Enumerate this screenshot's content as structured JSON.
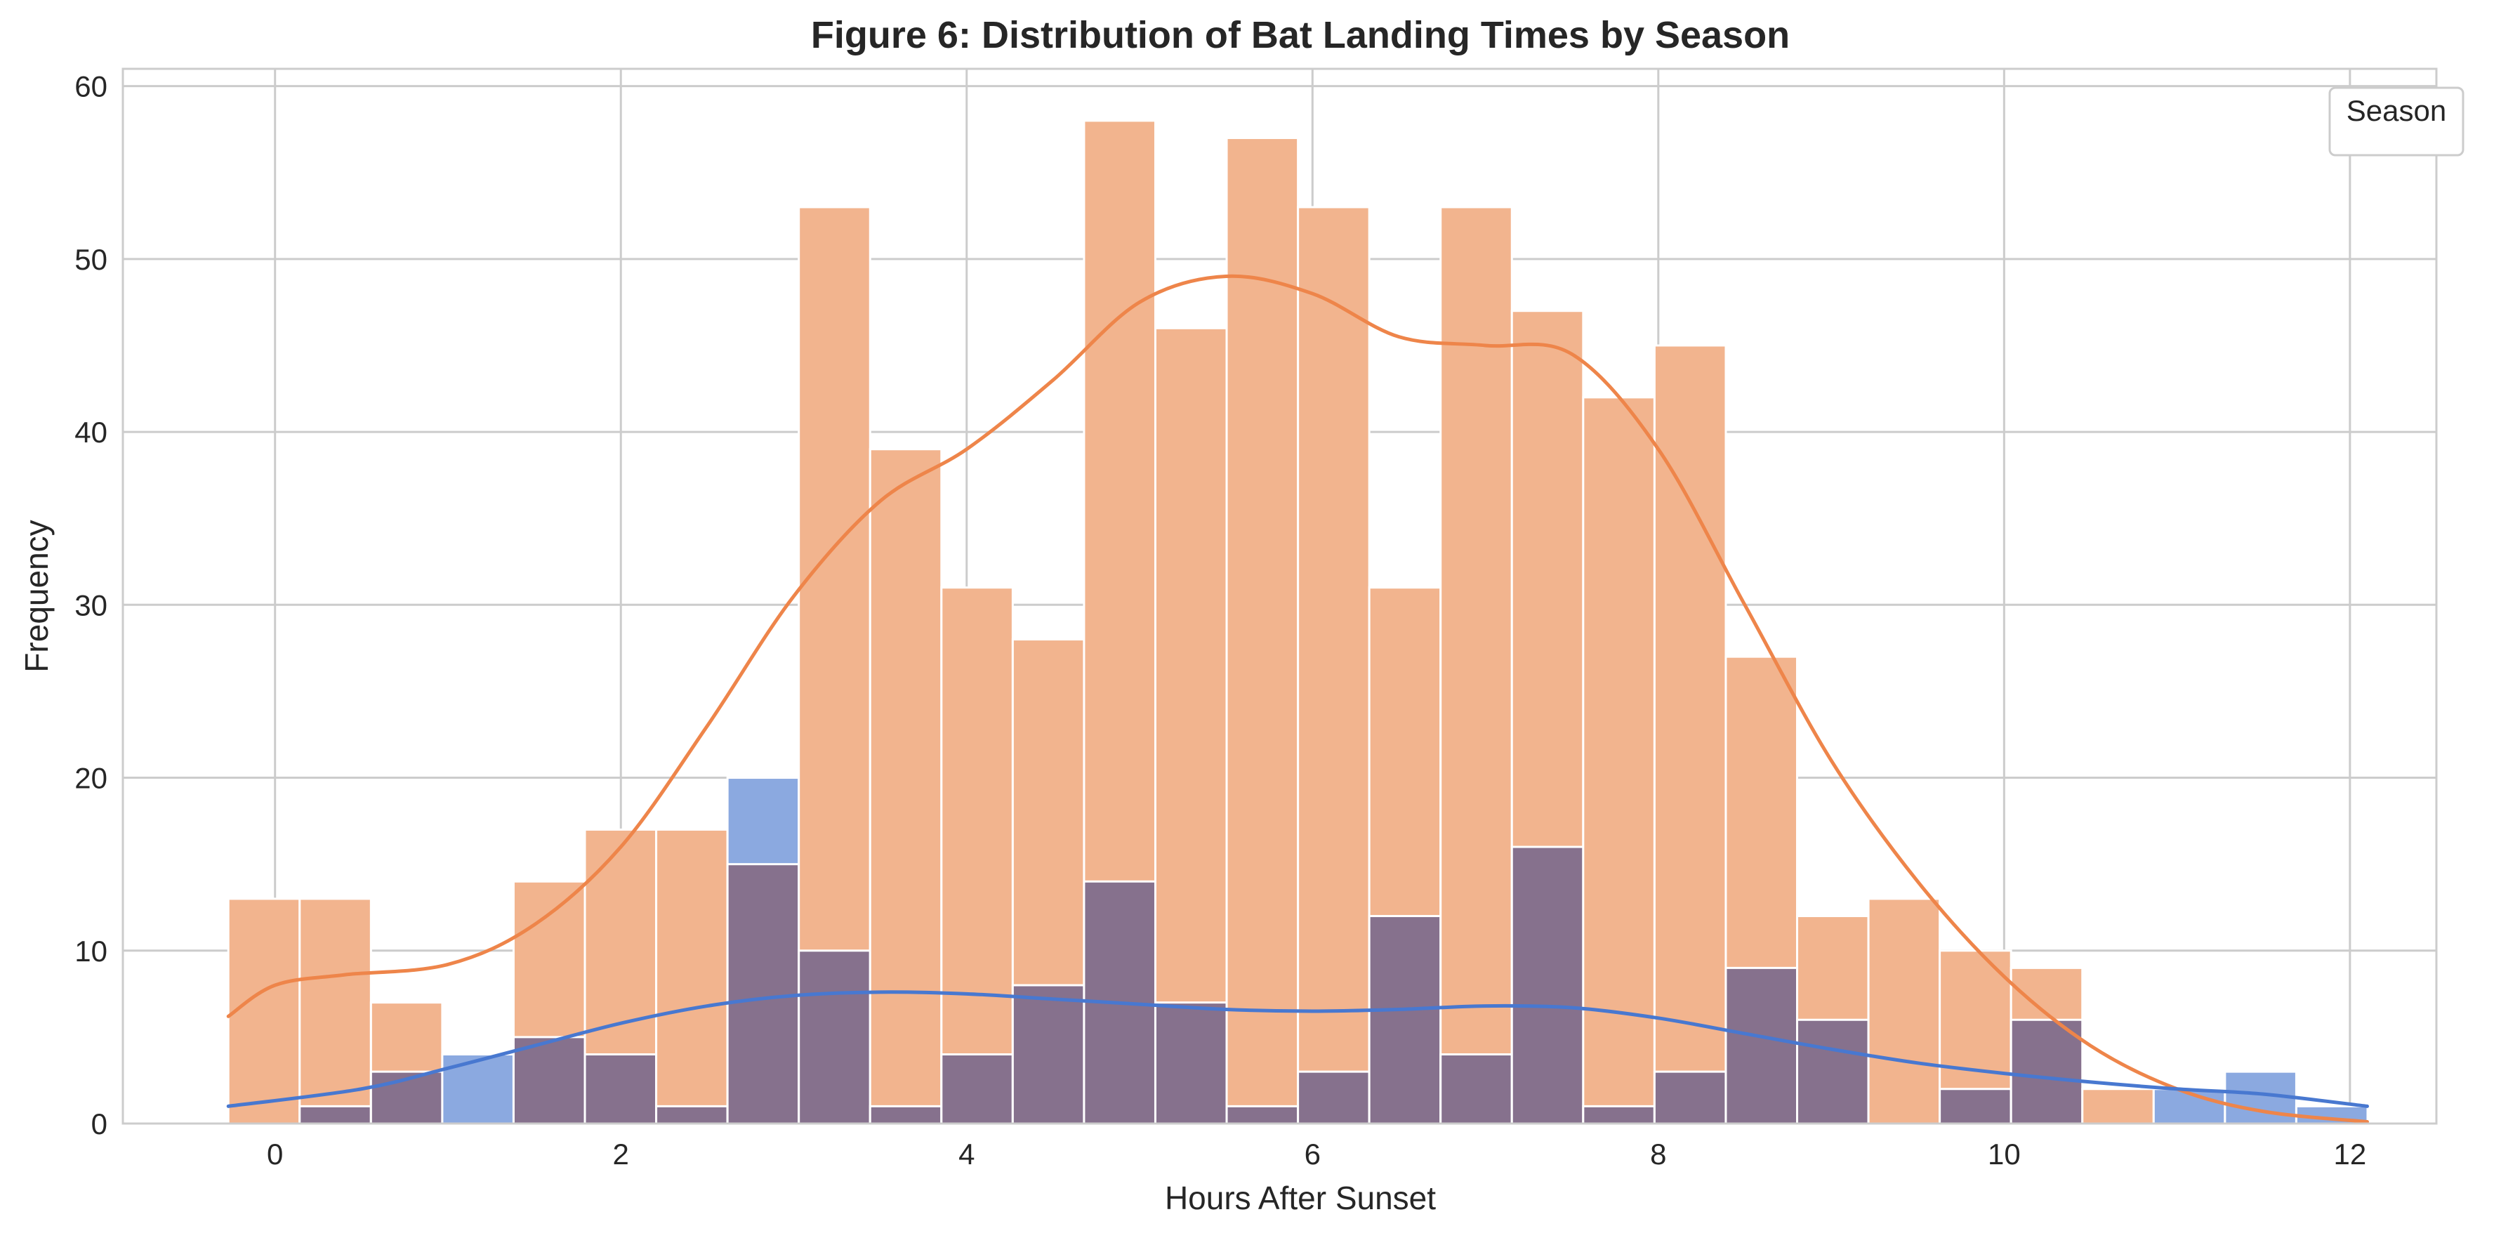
{
  "chart_data": {
    "type": "histogram",
    "title": "Figure 6: Distribution of Bat Landing Times by Season",
    "xlabel": "Hours After Sunset",
    "ylabel": "Frequency",
    "xlim": [
      -0.88,
      12.5
    ],
    "ylim": [
      0,
      61
    ],
    "xticks": [
      0,
      2,
      4,
      6,
      8,
      10,
      12
    ],
    "yticks": [
      0,
      10,
      20,
      30,
      40,
      50,
      60
    ],
    "grid": true,
    "legend": {
      "title": "Season",
      "location": "top-right",
      "entries": []
    },
    "bin_start": -0.27,
    "bin_width": 0.4124,
    "series": [
      {
        "color": "#ee854a",
        "fill": "#f2b48e",
        "values": [
          13,
          13,
          7,
          0,
          14,
          17,
          17,
          15,
          53,
          39,
          31,
          28,
          58,
          46,
          57,
          53,
          31,
          53,
          47,
          42,
          45,
          27,
          12,
          13,
          10,
          9,
          2,
          0,
          0,
          0
        ],
        "kde": [
          [
            -0.27,
            6.2
          ],
          [
            0.0,
            8.0
          ],
          [
            0.4,
            8.6
          ],
          [
            1.0,
            9.2
          ],
          [
            1.5,
            11.5
          ],
          [
            2.0,
            16.0
          ],
          [
            2.5,
            23.0
          ],
          [
            3.0,
            30.5
          ],
          [
            3.5,
            36.0
          ],
          [
            4.0,
            39.0
          ],
          [
            4.5,
            43.0
          ],
          [
            5.0,
            47.5
          ],
          [
            5.5,
            49.0
          ],
          [
            6.0,
            48.0
          ],
          [
            6.5,
            45.5
          ],
          [
            7.0,
            45.0
          ],
          [
            7.5,
            44.5
          ],
          [
            8.0,
            39.0
          ],
          [
            8.5,
            30.0
          ],
          [
            9.0,
            21.0
          ],
          [
            9.5,
            14.0
          ],
          [
            10.0,
            8.5
          ],
          [
            10.5,
            4.5
          ],
          [
            11.0,
            2.0
          ],
          [
            11.5,
            0.7
          ],
          [
            12.1,
            0.1
          ]
        ]
      },
      {
        "color": "#4878d0",
        "fill": "#8ba9e0",
        "values": [
          0,
          1,
          3,
          4,
          5,
          4,
          1,
          20,
          10,
          1,
          4,
          8,
          14,
          7,
          1,
          3,
          12,
          4,
          16,
          1,
          3,
          9,
          6,
          0,
          2,
          6,
          0,
          2,
          3,
          1
        ],
        "kde": [
          [
            -0.27,
            1.0
          ],
          [
            0.5,
            2.0
          ],
          [
            1.0,
            3.2
          ],
          [
            1.5,
            4.5
          ],
          [
            2.0,
            5.8
          ],
          [
            2.5,
            6.8
          ],
          [
            3.0,
            7.4
          ],
          [
            3.5,
            7.6
          ],
          [
            4.0,
            7.5
          ],
          [
            4.5,
            7.2
          ],
          [
            5.0,
            6.9
          ],
          [
            5.5,
            6.6
          ],
          [
            6.0,
            6.5
          ],
          [
            6.5,
            6.6
          ],
          [
            7.0,
            6.8
          ],
          [
            7.5,
            6.7
          ],
          [
            8.0,
            6.1
          ],
          [
            8.5,
            5.2
          ],
          [
            9.0,
            4.3
          ],
          [
            9.5,
            3.5
          ],
          [
            10.0,
            2.9
          ],
          [
            10.5,
            2.4
          ],
          [
            11.0,
            2.0
          ],
          [
            11.5,
            1.7
          ],
          [
            12.1,
            1.0
          ]
        ]
      }
    ]
  }
}
